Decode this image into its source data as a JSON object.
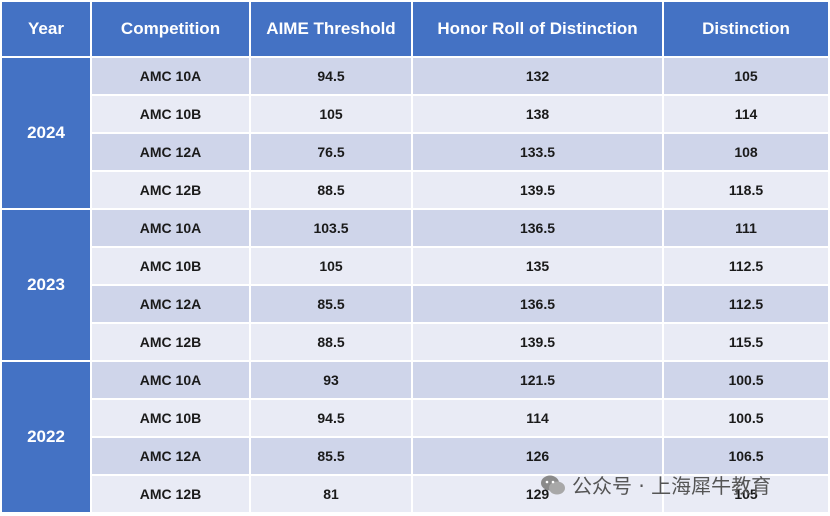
{
  "table": {
    "header": [
      "Year",
      "Competition",
      "AIME Threshold",
      "Honor Roll of Distinction",
      "Distinction"
    ],
    "groups": [
      {
        "year": 2024,
        "rows": [
          [
            "AMC 10A",
            94.5,
            132,
            105
          ],
          [
            "AMC 10B",
            105,
            138,
            114
          ],
          [
            "AMC 12A",
            76.5,
            133.5,
            108
          ],
          [
            "AMC 12B",
            88.5,
            139.5,
            118.5
          ]
        ]
      },
      {
        "year": 2023,
        "rows": [
          [
            "AMC 10A",
            103.5,
            136.5,
            111
          ],
          [
            "AMC 10B",
            105,
            135,
            112.5
          ],
          [
            "AMC 12A",
            85.5,
            136.5,
            112.5
          ],
          [
            "AMC 12B",
            88.5,
            139.5,
            115.5
          ]
        ]
      },
      {
        "year": 2022,
        "rows": [
          [
            "AMC 10A",
            93,
            121.5,
            100.5
          ],
          [
            "AMC 10B",
            94.5,
            114,
            100.5
          ],
          [
            "AMC 12A",
            85.5,
            126,
            106.5
          ],
          [
            "AMC 12B",
            81,
            129,
            105
          ]
        ]
      }
    ]
  },
  "watermark": "公众号 · 上海犀牛教育"
}
